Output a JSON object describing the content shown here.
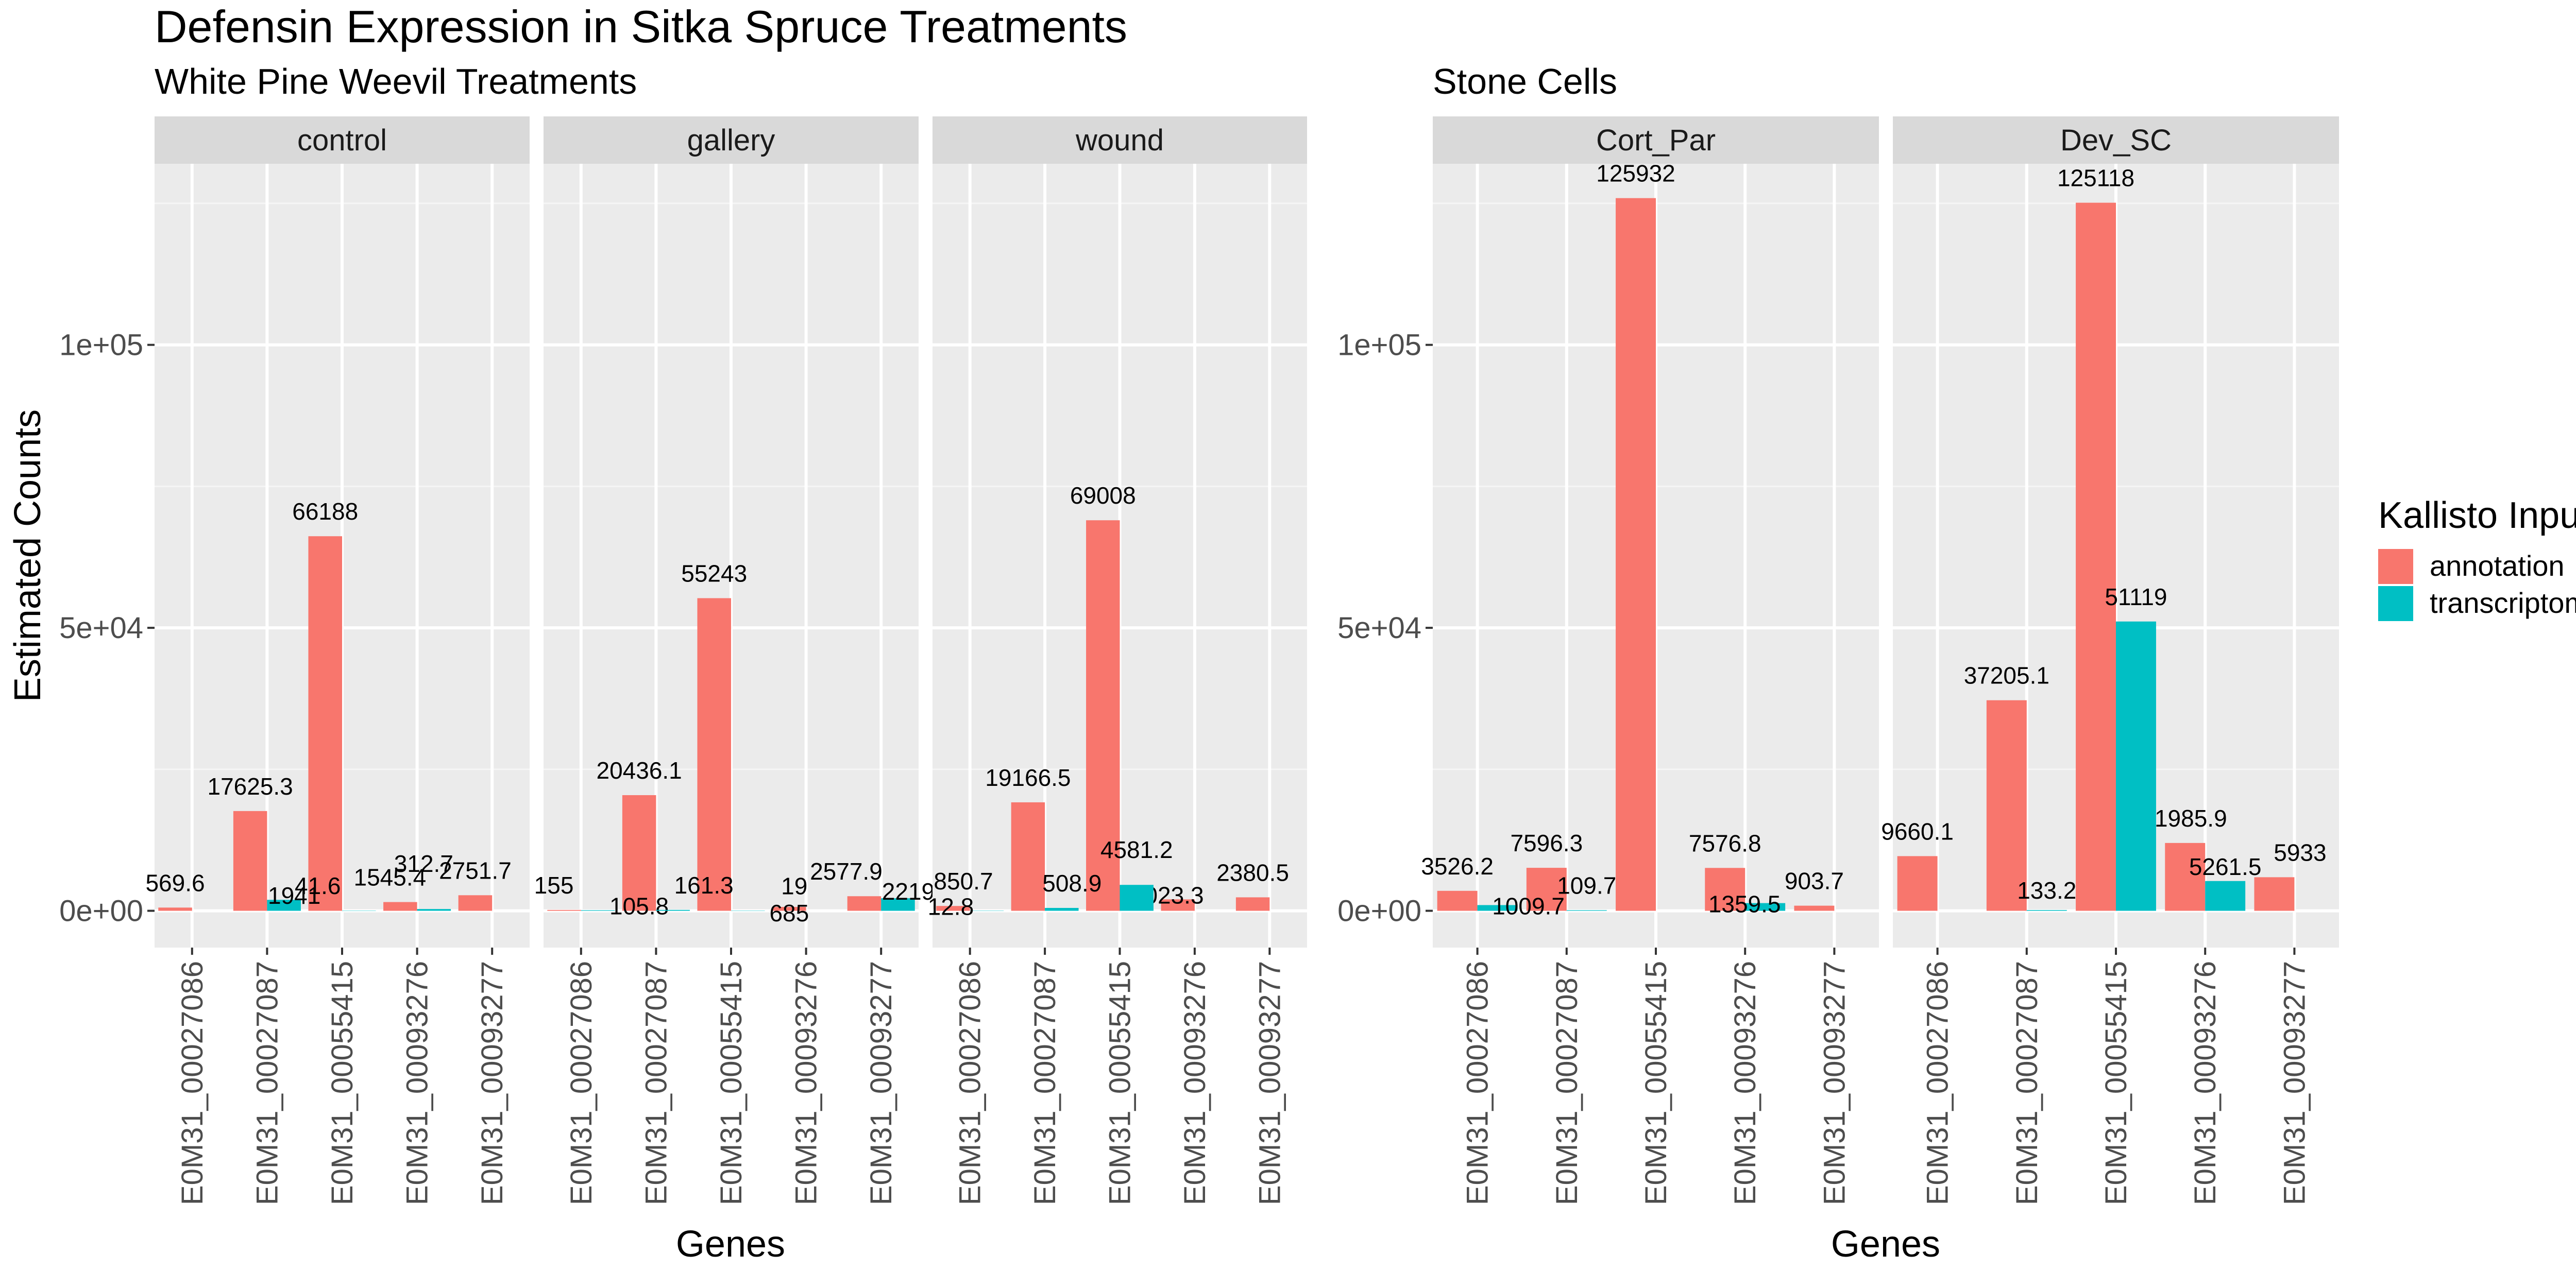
{
  "title": "Defensin Expression in Sitka Spruce Treatments",
  "legend": {
    "title": "Kallisto Input",
    "placement": "right",
    "entries": [
      {
        "label": "annotation",
        "color": "#F8766D"
      },
      {
        "label": "transcriptome",
        "color": "#00BFC4"
      }
    ]
  },
  "chart_data": [
    {
      "type": "bar",
      "subtitle": "White Pine Weevil Treatments",
      "xlabel": "Genes",
      "ylabel": "Estimated Counts",
      "ylim": [
        -6500,
        132000
      ],
      "y_ticks": [
        0,
        50000,
        100000
      ],
      "y_tick_labels": [
        "0e+00",
        "5e+04",
        "1e+05"
      ],
      "grid": true,
      "categories": [
        "E0M31_00027086",
        "E0M31_00027087",
        "E0M31_00055415",
        "E0M31_00093276",
        "E0M31_00093277"
      ],
      "facets": [
        {
          "label": "control",
          "series": [
            {
              "name": "annotation",
              "values": [
                569.6,
                17625.3,
                66188,
                1545.4,
                2751.7
              ]
            },
            {
              "name": "transcriptome",
              "values": [
                null,
                1941,
                41.6,
                312.7,
                null
              ]
            }
          ]
        },
        {
          "label": "gallery",
          "series": [
            {
              "name": "annotation",
              "values": [
                155,
                20436.1,
                55243,
                685,
                2577.9
              ]
            },
            {
              "name": "transcriptome",
              "values": [
                105.8,
                161.3,
                19,
                null,
                2219
              ]
            }
          ]
        },
        {
          "label": "wound",
          "series": [
            {
              "name": "annotation",
              "values": [
                850.7,
                19166.5,
                69008,
                2023.3,
                2380.5
              ]
            },
            {
              "name": "transcriptome",
              "values": [
                12.8,
                508.9,
                4581.2,
                null,
                null
              ]
            }
          ]
        }
      ]
    },
    {
      "type": "bar",
      "subtitle": "Stone Cells",
      "xlabel": "Genes",
      "ylabel": "",
      "ylim": [
        -6500,
        132000
      ],
      "y_ticks": [
        0,
        50000,
        100000
      ],
      "y_tick_labels": [
        "0e+00",
        "5e+04",
        "1e+05"
      ],
      "grid": true,
      "categories": [
        "E0M31_00027086",
        "E0M31_00027087",
        "E0M31_00055415",
        "E0M31_00093276",
        "E0M31_00093277"
      ],
      "facets": [
        {
          "label": "Cort_Par",
          "series": [
            {
              "name": "annotation",
              "values": [
                3526.2,
                7596.3,
                125932,
                7576.8,
                903.7
              ]
            },
            {
              "name": "transcriptome",
              "values": [
                1009.7,
                109.7,
                null,
                1359.5,
                null
              ]
            }
          ]
        },
        {
          "label": "Dev_SC",
          "series": [
            {
              "name": "annotation",
              "values": [
                9660.1,
                37205.1,
                125118,
                11985.9,
                5933
              ]
            },
            {
              "name": "transcriptome",
              "values": [
                null,
                133.2,
                51119,
                5261.5,
                null
              ]
            }
          ]
        }
      ]
    }
  ]
}
